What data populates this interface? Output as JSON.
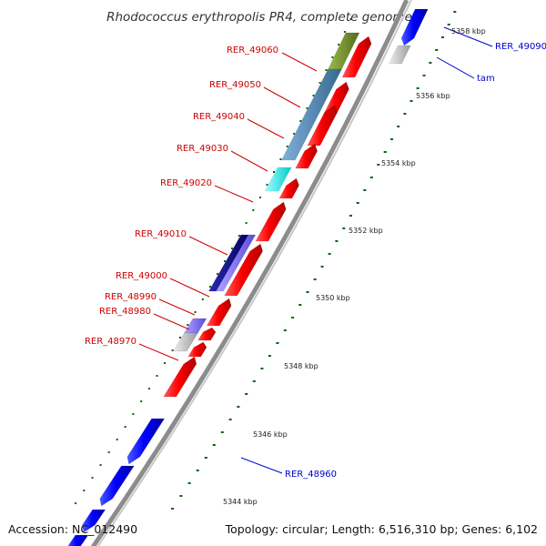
{
  "title": "Rhodococcus erythropolis PR4, complete genome",
  "footer": {
    "accession": "Accession: NC_012490",
    "summary": "Topology: circular; Length: 6,516,310 bp; Genes: 6,102"
  },
  "colors": {
    "forward_gene": "#ff0000",
    "reverse_gene": "#0000ff",
    "label_forward": "#cc0000",
    "label_reverse": "#0000cc",
    "backbone": "#999999",
    "tick": "#006600",
    "cog_olive": "#6b8e23",
    "cog_steel": "#4682b4",
    "cog_cyan": "#00ffff",
    "cog_navy": "#000080",
    "cog_slate": "#8470ff",
    "cog_gray": "#c0c0c0"
  },
  "ticks": [
    "5358 kbp",
    "5356 kbp",
    "5354 kbp",
    "5352 kbp",
    "5350 kbp",
    "5348 kbp",
    "5346 kbp",
    "5344 kbp"
  ],
  "gene_labels": [
    {
      "name": "RER_49060",
      "strand": "forward"
    },
    {
      "name": "RER_49050",
      "strand": "forward"
    },
    {
      "name": "RER_49040",
      "strand": "forward"
    },
    {
      "name": "RER_49030",
      "strand": "forward"
    },
    {
      "name": "RER_49020",
      "strand": "forward"
    },
    {
      "name": "RER_49010",
      "strand": "forward"
    },
    {
      "name": "RER_49000",
      "strand": "forward"
    },
    {
      "name": "RER_48990",
      "strand": "forward"
    },
    {
      "name": "RER_48980",
      "strand": "forward"
    },
    {
      "name": "RER_48970",
      "strand": "forward"
    },
    {
      "name": "RER_49090",
      "strand": "reverse"
    },
    {
      "name": "tam",
      "strand": "reverse"
    },
    {
      "name": "RER_48960",
      "strand": "reverse"
    }
  ]
}
